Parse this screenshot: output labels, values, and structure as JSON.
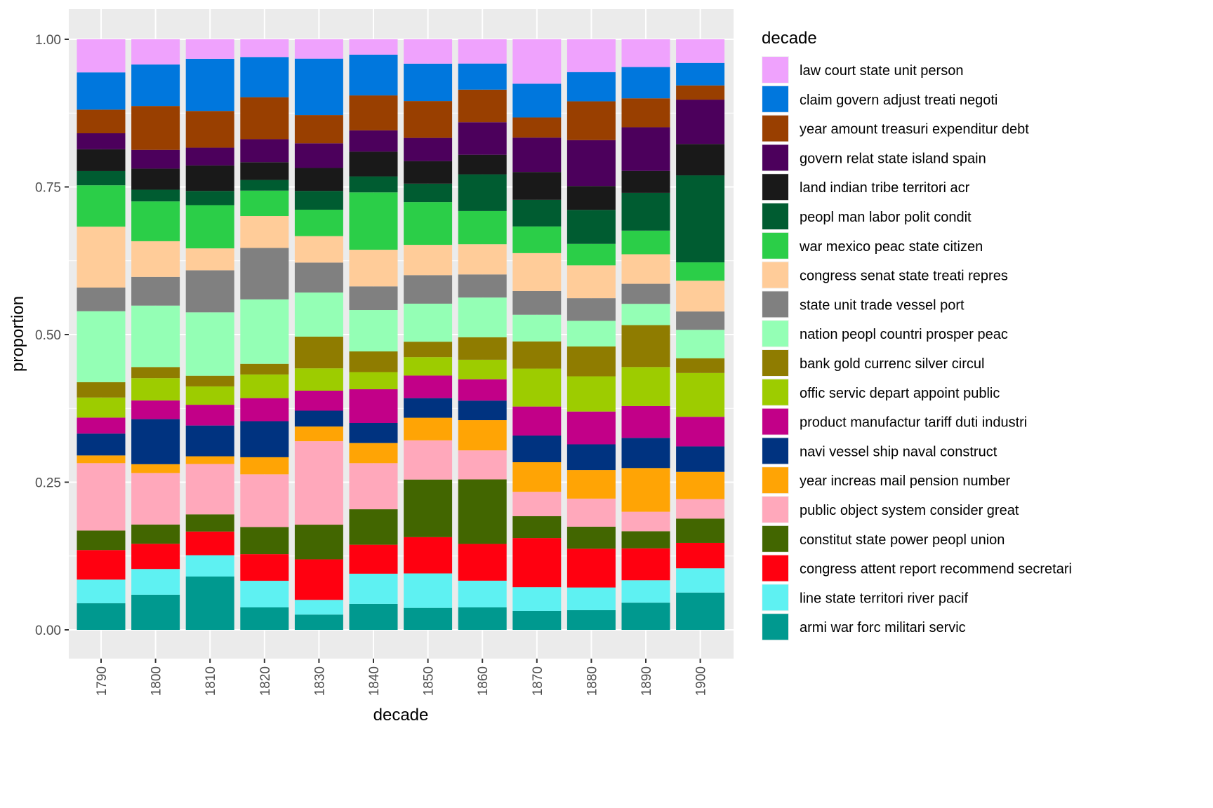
{
  "chart_data": {
    "type": "bar",
    "stacked": true,
    "position": "fill",
    "title": "",
    "xlabel": "decade",
    "ylabel": "proportion",
    "ylim": [
      0,
      1
    ],
    "yticks": [
      "0.00",
      "0.25",
      "0.50",
      "0.75",
      "1.00"
    ],
    "ytick_values": [
      0,
      0.25,
      0.5,
      0.75,
      1.0
    ],
    "grid": true,
    "legend_title": "decade",
    "legend_position": "right",
    "categories": [
      "1790",
      "1800",
      "1810",
      "1820",
      "1830",
      "1840",
      "1850",
      "1860",
      "1870",
      "1880",
      "1890",
      "1900"
    ],
    "series": [
      {
        "name": "law court state unit person",
        "color": "#EFA2FD",
        "values": [
          0.056,
          0.043,
          0.033,
          0.03,
          0.033,
          0.026,
          0.041,
          0.041,
          0.075,
          0.055,
          0.047,
          0.04
        ]
      },
      {
        "name": "claim govern adjust treati negoti",
        "color": "#0077DD",
        "values": [
          0.063,
          0.071,
          0.088,
          0.068,
          0.096,
          0.069,
          0.063,
          0.044,
          0.057,
          0.049,
          0.053,
          0.038
        ]
      },
      {
        "name": "year amount treasuri expenditur debt",
        "color": "#993F00",
        "values": [
          0.04,
          0.075,
          0.062,
          0.071,
          0.048,
          0.059,
          0.062,
          0.055,
          0.034,
          0.065,
          0.049,
          0.024
        ]
      },
      {
        "name": "govern relat state island spain",
        "color": "#4C005C",
        "values": [
          0.027,
          0.032,
          0.03,
          0.039,
          0.042,
          0.036,
          0.039,
          0.055,
          0.058,
          0.077,
          0.074,
          0.075
        ]
      },
      {
        "name": "land indian tribe territori acr",
        "color": "#191919",
        "values": [
          0.037,
          0.036,
          0.043,
          0.03,
          0.039,
          0.042,
          0.038,
          0.033,
          0.047,
          0.04,
          0.037,
          0.053
        ]
      },
      {
        "name": "peopl man labor polit condit",
        "color": "#005C31",
        "values": [
          0.024,
          0.02,
          0.024,
          0.018,
          0.032,
          0.027,
          0.031,
          0.062,
          0.045,
          0.057,
          0.064,
          0.147
        ]
      },
      {
        "name": "war mexico peac state citizen",
        "color": "#2BCE48",
        "values": [
          0.07,
          0.068,
          0.073,
          0.043,
          0.045,
          0.097,
          0.072,
          0.056,
          0.045,
          0.036,
          0.04,
          0.031
        ]
      },
      {
        "name": "congress senat state treati repres",
        "color": "#FFCC99",
        "values": [
          0.103,
          0.061,
          0.037,
          0.054,
          0.045,
          0.062,
          0.051,
          0.051,
          0.064,
          0.055,
          0.05,
          0.052
        ]
      },
      {
        "name": "state unit trade vessel port",
        "color": "#808080",
        "values": [
          0.04,
          0.049,
          0.071,
          0.087,
          0.051,
          0.04,
          0.048,
          0.039,
          0.04,
          0.038,
          0.034,
          0.031
        ]
      },
      {
        "name": "nation peopl countri prosper peac",
        "color": "#94FFB5",
        "values": [
          0.12,
          0.105,
          0.107,
          0.109,
          0.075,
          0.07,
          0.064,
          0.067,
          0.045,
          0.043,
          0.036,
          0.048
        ]
      },
      {
        "name": "bank gold currenc silver circul",
        "color": "#8F7C00",
        "values": [
          0.026,
          0.019,
          0.018,
          0.018,
          0.054,
          0.035,
          0.026,
          0.038,
          0.046,
          0.05,
          0.071,
          0.025
        ]
      },
      {
        "name": "offic servic depart appoint public",
        "color": "#9DCC00",
        "values": [
          0.034,
          0.038,
          0.031,
          0.04,
          0.038,
          0.029,
          0.031,
          0.033,
          0.064,
          0.059,
          0.066,
          0.074
        ]
      },
      {
        "name": "product manufactur tariff duti industri",
        "color": "#C20088",
        "values": [
          0.027,
          0.032,
          0.035,
          0.039,
          0.034,
          0.057,
          0.038,
          0.036,
          0.049,
          0.055,
          0.054,
          0.05
        ]
      },
      {
        "name": "navi vessel ship naval construct",
        "color": "#003380",
        "values": [
          0.037,
          0.077,
          0.052,
          0.061,
          0.027,
          0.034,
          0.033,
          0.033,
          0.045,
          0.043,
          0.051,
          0.043
        ]
      },
      {
        "name": "year increas mail pension number",
        "color": "#FFA405",
        "values": [
          0.013,
          0.015,
          0.013,
          0.029,
          0.025,
          0.034,
          0.038,
          0.051,
          0.05,
          0.048,
          0.074,
          0.046
        ]
      },
      {
        "name": "public object system consider great",
        "color": "#FFA8BB",
        "values": [
          0.114,
          0.088,
          0.085,
          0.089,
          0.142,
          0.078,
          0.066,
          0.049,
          0.041,
          0.047,
          0.033,
          0.033
        ]
      },
      {
        "name": "constitut state power peopl union",
        "color": "#426600",
        "values": [
          0.033,
          0.033,
          0.029,
          0.046,
          0.059,
          0.06,
          0.097,
          0.109,
          0.037,
          0.037,
          0.029,
          0.041
        ]
      },
      {
        "name": "congress attent report recommend secretari",
        "color": "#FF0010",
        "values": [
          0.05,
          0.043,
          0.04,
          0.045,
          0.069,
          0.049,
          0.061,
          0.062,
          0.083,
          0.065,
          0.054,
          0.043
        ]
      },
      {
        "name": "line state territori river pacif",
        "color": "#5EF1F2",
        "values": [
          0.04,
          0.044,
          0.036,
          0.045,
          0.025,
          0.051,
          0.058,
          0.045,
          0.04,
          0.038,
          0.038,
          0.041
        ]
      },
      {
        "name": "armi war forc militari servic",
        "color": "#00998F",
        "values": [
          0.045,
          0.06,
          0.09,
          0.038,
          0.026,
          0.044,
          0.037,
          0.038,
          0.032,
          0.033,
          0.046,
          0.063
        ]
      }
    ]
  }
}
